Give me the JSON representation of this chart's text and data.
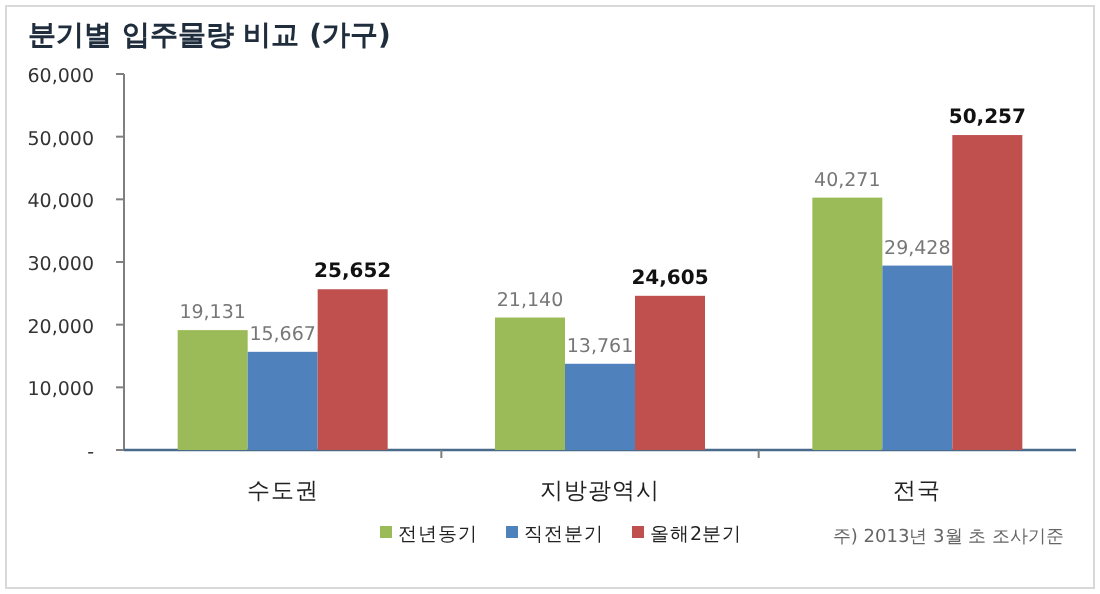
{
  "chart_data": {
    "type": "bar",
    "title": "분기별 입주물량 비교 (가구)",
    "categories": [
      "수도권",
      "지방광역시",
      "전국"
    ],
    "series": [
      {
        "name": "전년동기",
        "color": "#9bbb59",
        "values": [
          19131,
          21140,
          40271
        ],
        "value_labels": [
          "19,131",
          "21,140",
          "40,271"
        ]
      },
      {
        "name": "직전분기",
        "color": "#4f81bd",
        "values": [
          15667,
          13761,
          29428
        ],
        "value_labels": [
          "15,667",
          "13,761",
          "29,428"
        ]
      },
      {
        "name": "올해2분기",
        "color": "#c0504d",
        "values": [
          25652,
          24605,
          50257
        ],
        "value_labels": [
          "25,652",
          "24,605",
          "50,257"
        ]
      }
    ],
    "ylim": [
      0,
      60000
    ],
    "yticks": [
      {
        "value": 0,
        "label": "-"
      },
      {
        "value": 10000,
        "label": "10,000"
      },
      {
        "value": 20000,
        "label": "20,000"
      },
      {
        "value": 30000,
        "label": "30,000"
      },
      {
        "value": 40000,
        "label": "40,000"
      },
      {
        "value": 50000,
        "label": "50,000"
      },
      {
        "value": 60000,
        "label": "60,000"
      }
    ],
    "grid": false,
    "legend": "bottom",
    "annotations": [
      "주) 2013년 3월 초 조사기준"
    ]
  }
}
